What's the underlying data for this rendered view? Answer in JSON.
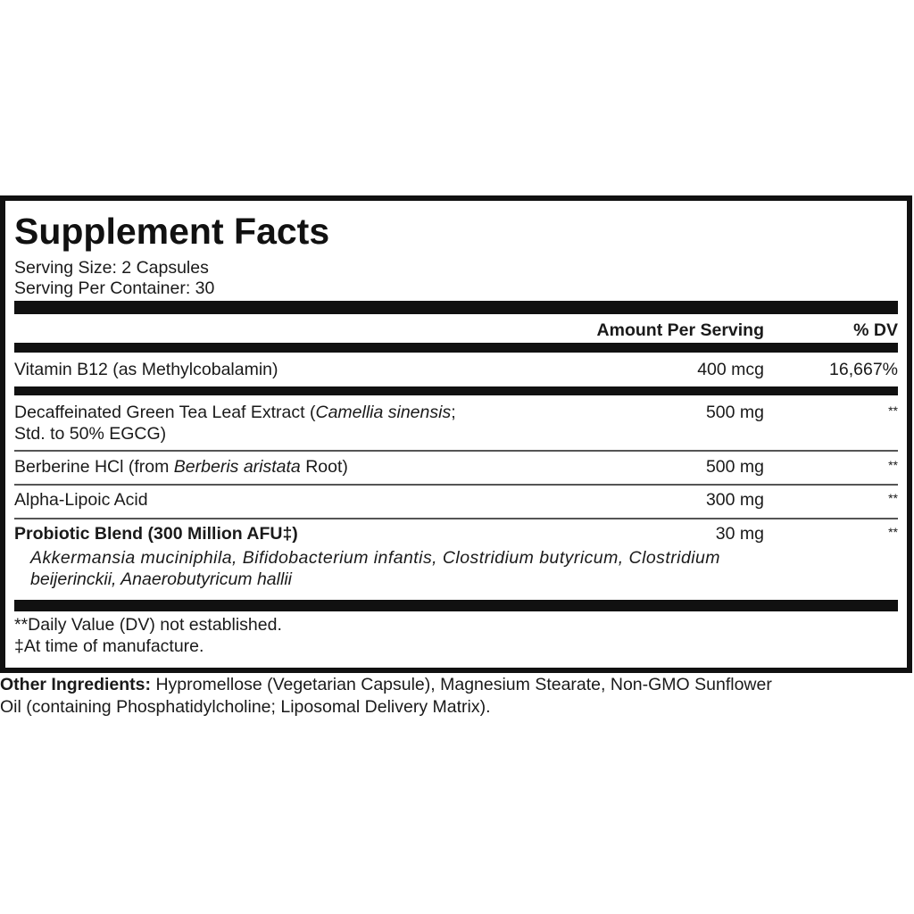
{
  "title": "Supplement Facts",
  "serving_size": "Serving Size: 2 Capsules",
  "servings_per_container": "Serving Per Container: 30",
  "header": {
    "amount": "Amount Per Serving",
    "dv": "% DV"
  },
  "rows": [
    {
      "name": "Vitamin B12 (as Methylcobalamin)",
      "amount": "400 mcg",
      "dv": "16,667%"
    },
    {
      "name_pre": "Decaffeinated Green Tea Leaf Extract (",
      "name_italic": "Camellia sinensis",
      "name_post": ";",
      "name_line2": "Std. to 50% EGCG)",
      "amount": "500 mg",
      "dv": "**"
    },
    {
      "name_pre": "Berberine HCl (from ",
      "name_italic": "Berberis aristata",
      "name_post": " Root)",
      "amount": "500 mg",
      "dv": "**"
    },
    {
      "name": "Alpha-Lipoic Acid",
      "amount": "300 mg",
      "dv": "**"
    },
    {
      "name": "Probiotic Blend (300 Million AFU‡)",
      "amount": "30 mg",
      "dv": "**",
      "sub_line1": "Akkermansia muciniphila, Bifidobacterium infantis, Clostridium butyricum, Clostridium",
      "sub_line2": "beijerinckii, Anaerobutyricum hallii"
    }
  ],
  "footnotes": [
    "**Daily Value (DV) not established.",
    "‡At time of manufacture."
  ],
  "other_ingredients": {
    "label": "Other Ingredients:",
    "line1": " Hypromellose (Vegetarian Capsule), Magnesium Stearate, Non-GMO Sunflower",
    "line2": "Oil (containing Phosphatidylcholine; Liposomal Delivery Matrix)."
  }
}
